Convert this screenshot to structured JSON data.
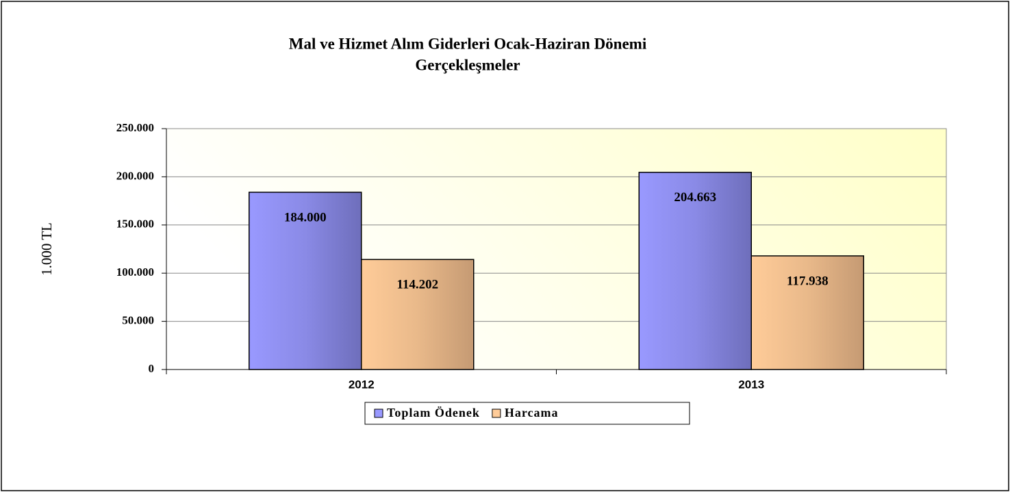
{
  "chart_data": {
    "type": "bar",
    "title": [
      "Mal ve Hizmet Alım Giderleri Ocak-Haziran Dönemi",
      "Gerçekleşmeler"
    ],
    "y_label": "1.000 TL",
    "categories": [
      "2012",
      "2013"
    ],
    "series": [
      {
        "name": "Toplam Ödenek",
        "color": "#9999ff",
        "values": [
          184000,
          204663
        ],
        "value_labels": [
          "184.000",
          "204.663"
        ]
      },
      {
        "name": "Harcama",
        "color": "#ffcc99",
        "values": [
          114202,
          117938
        ],
        "value_labels": [
          "114.202",
          "117.938"
        ]
      }
    ],
    "ylim": [
      0,
      250000
    ],
    "yticks": [
      0,
      {
        "value": 50000,
        "label": "50.000"
      },
      {
        "value": 100000,
        "label": "100.000"
      },
      {
        "value": 150000,
        "label": "150.000"
      },
      {
        "value": 200000,
        "label": "200.000"
      },
      {
        "value": 250000,
        "label": "250.000"
      }
    ],
    "grid": true,
    "legend": "bottom"
  }
}
